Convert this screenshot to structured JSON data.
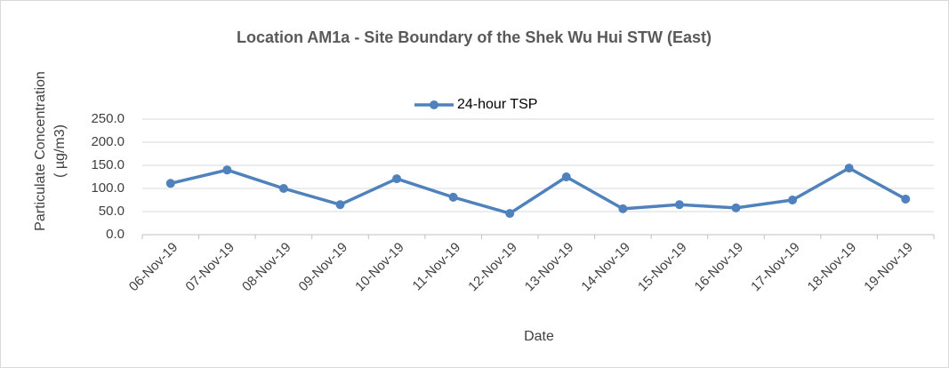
{
  "chart_data": {
    "type": "line",
    "title": "Location AM1a - Site Boundary of the Shek Wu Hui STW (East)",
    "xlabel": "Date",
    "ylabel": [
      "Particulate Concentration",
      "( µg/m3)"
    ],
    "categories": [
      "06-Nov-19",
      "07-Nov-19",
      "08-Nov-19",
      "09-Nov-19",
      "10-Nov-19",
      "11-Nov-19",
      "12-Nov-19",
      "13-Nov-19",
      "14-Nov-19",
      "15-Nov-19",
      "16-Nov-19",
      "17-Nov-19",
      "18-Nov-19",
      "19-Nov-19"
    ],
    "series": [
      {
        "name": "24-hour TSP",
        "color": "#4f81bd",
        "values": [
          111,
          140,
          100,
          65,
          121,
          81,
          46,
          125,
          56,
          65,
          58,
          75,
          144,
          77
        ]
      }
    ],
    "ylim": [
      0,
      250
    ],
    "yticks": [
      {
        "value": 0,
        "label": "0.0"
      },
      {
        "value": 50,
        "label": "50.0"
      },
      {
        "value": 100,
        "label": "100.0"
      },
      {
        "value": 150,
        "label": "150.0"
      },
      {
        "value": 200,
        "label": "200.0"
      },
      {
        "value": 250,
        "label": "250.0"
      }
    ],
    "grid": true,
    "legend": "top"
  }
}
